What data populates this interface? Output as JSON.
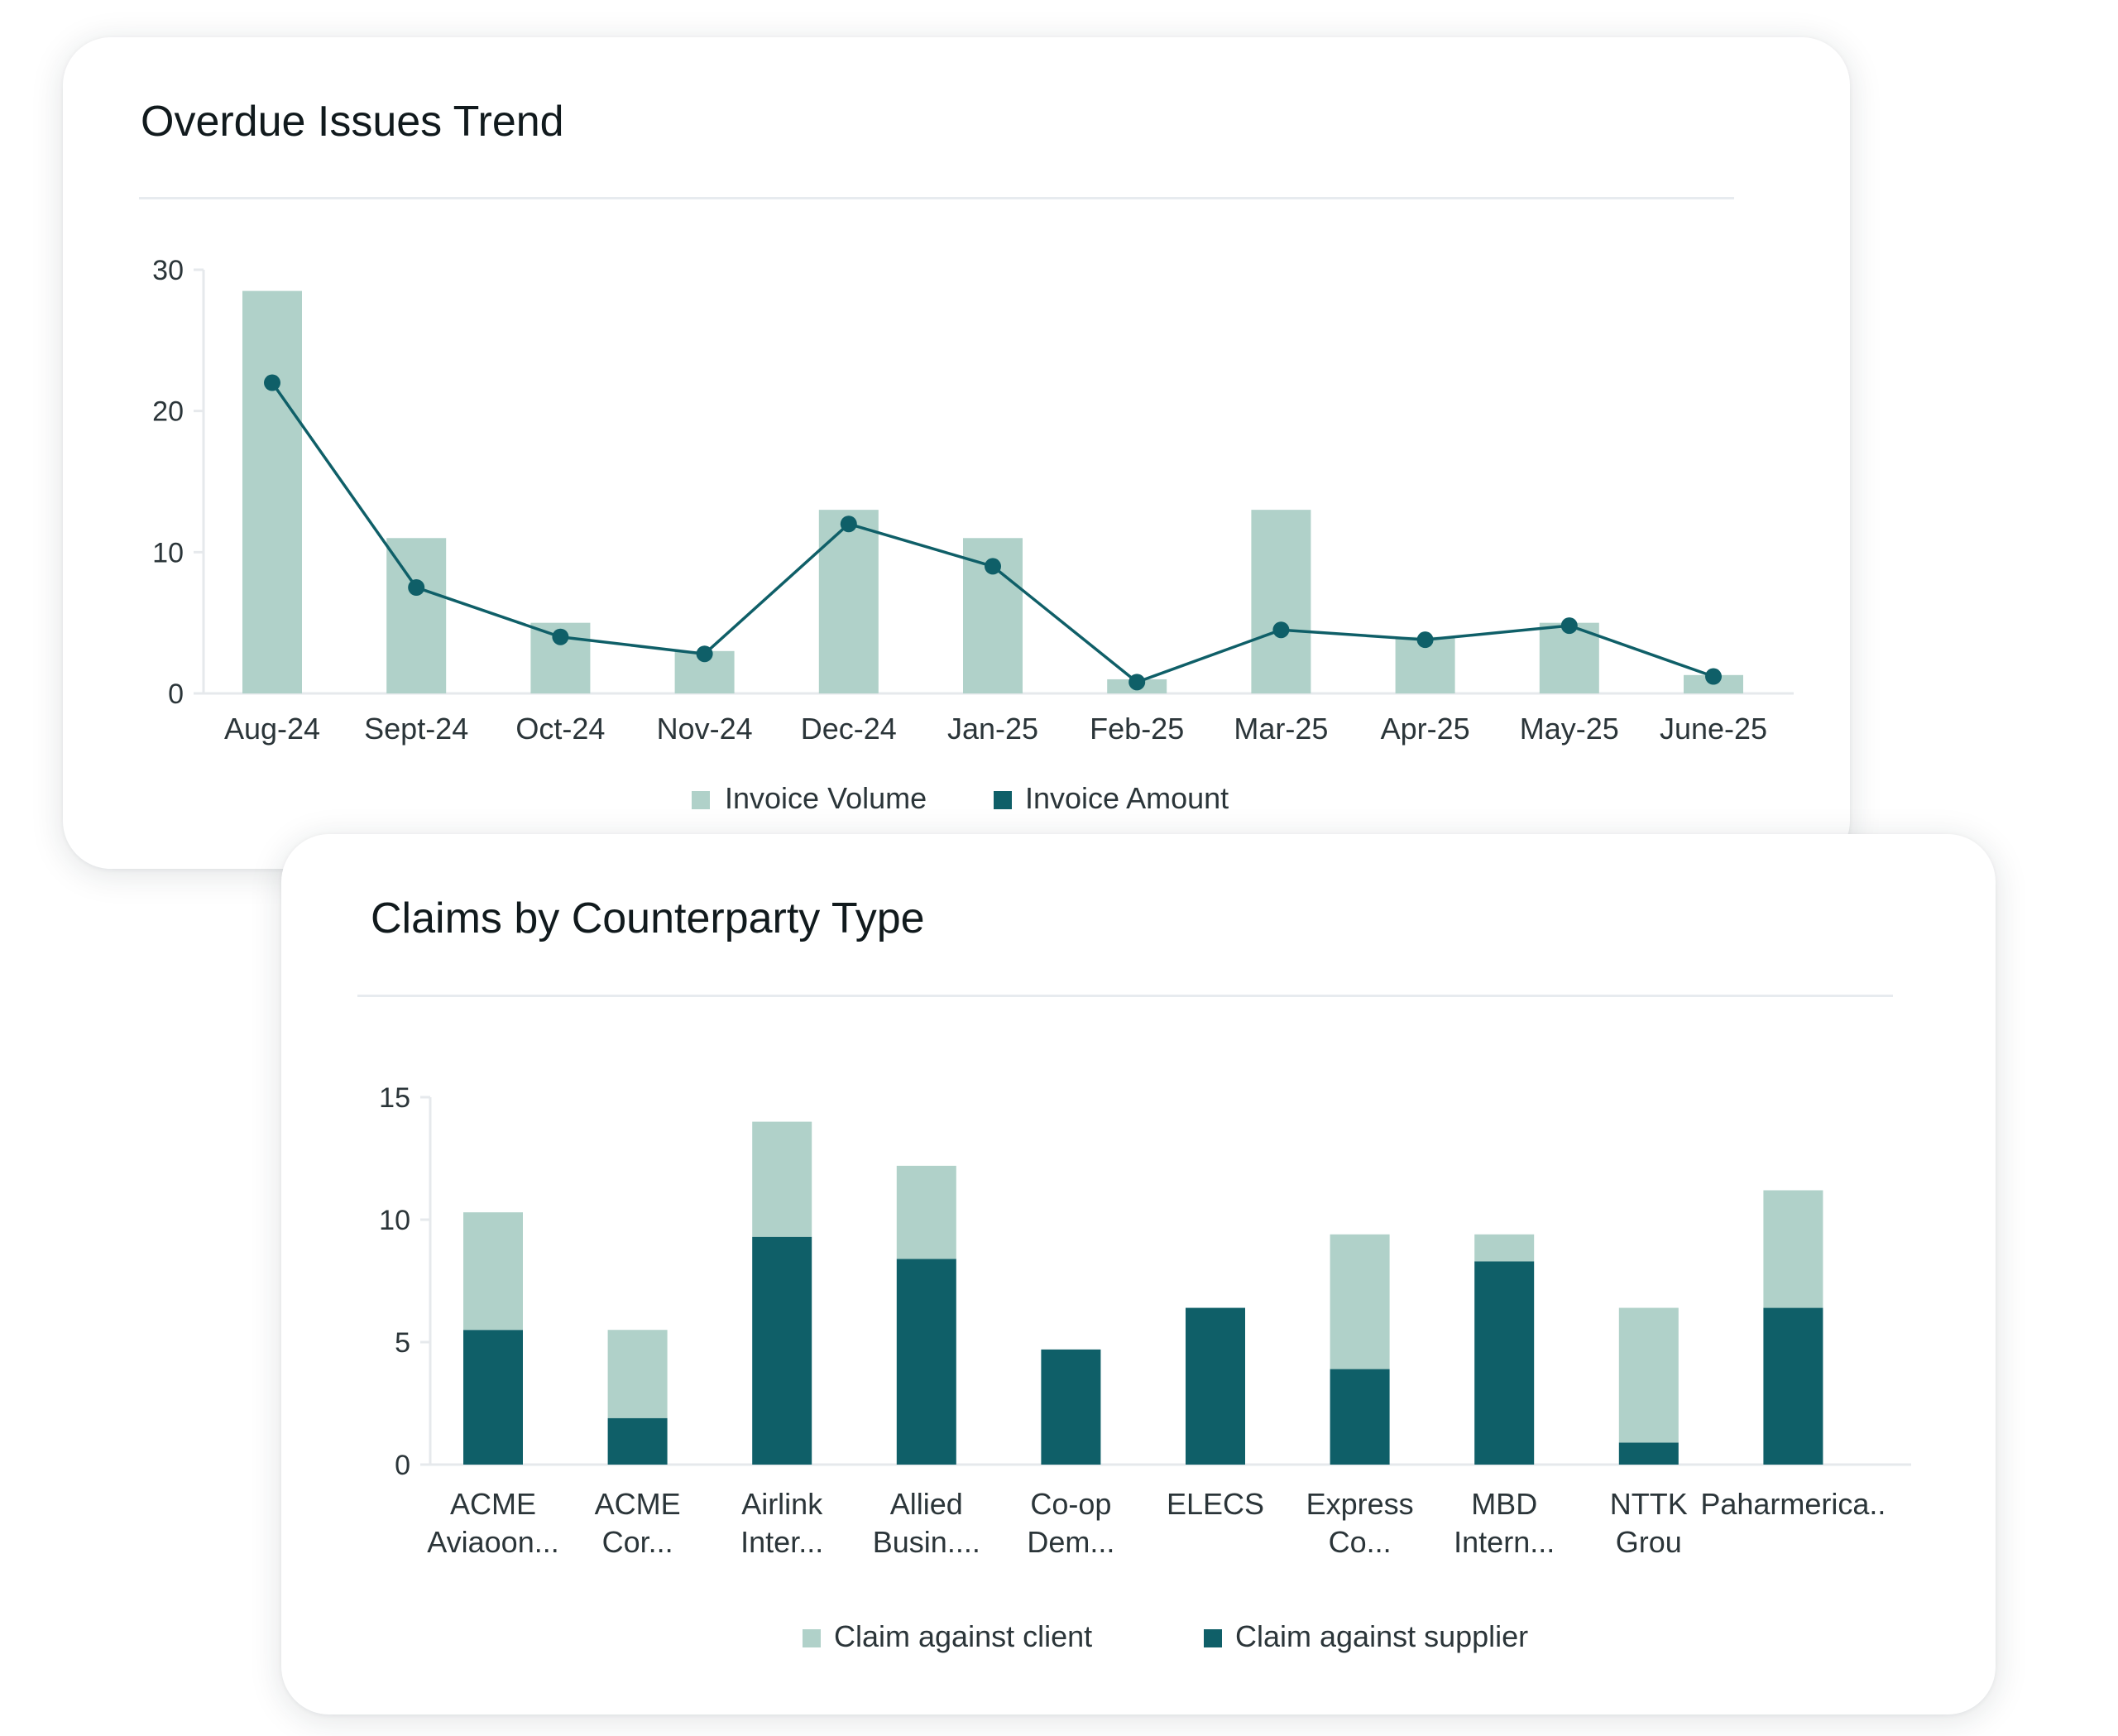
{
  "charts": {
    "trend": {
      "title": "Overdue Issues Trend"
    },
    "claims": {
      "title": "Claims by Counterparty Type"
    }
  },
  "colors": {
    "light": "#b0d1c9",
    "dark": "#0f5f68",
    "axis": "#e6e9ec",
    "text": "#2b3539"
  },
  "chart_data": [
    {
      "type": "bar",
      "title": "Overdue Issues Trend",
      "categories": [
        "Aug-24",
        "Sept-24",
        "Oct-24",
        "Nov-24",
        "Dec-24",
        "Jan-25",
        "Feb-25",
        "Mar-25",
        "Apr-25",
        "May-25",
        "June-25"
      ],
      "series": [
        {
          "name": "Invoice Volume",
          "type": "bar",
          "values": [
            28.5,
            11,
            5,
            3,
            13,
            11,
            1,
            13,
            4,
            5,
            1.3
          ]
        },
        {
          "name": "Invoice Amount",
          "type": "line",
          "values": [
            22,
            7.5,
            4,
            2.8,
            12,
            9,
            0.8,
            4.5,
            3.8,
            4.8,
            1.2
          ]
        }
      ],
      "ylim": [
        0,
        30
      ],
      "yticks": [
        0,
        10,
        20,
        30
      ],
      "xlabel": "",
      "ylabel": "",
      "legend": "bottom-center"
    },
    {
      "type": "bar",
      "title": "Claims by Counterparty Type",
      "stacked": true,
      "categories": [
        [
          "ACME",
          "Aviaoon..."
        ],
        [
          "ACME",
          "Cor..."
        ],
        [
          "Airlink",
          "Inter..."
        ],
        [
          "Allied",
          "Busin...."
        ],
        [
          "Co-op",
          "Dem..."
        ],
        [
          "ELECS"
        ],
        [
          "Express",
          "Co..."
        ],
        [
          "MBD",
          "Intern..."
        ],
        [
          "NTTK",
          "Grou"
        ],
        [
          "Paharmerica.."
        ]
      ],
      "series": [
        {
          "name": "Claim against supplier",
          "values": [
            5.5,
            1.9,
            9.3,
            8.4,
            4.7,
            6.4,
            3.9,
            8.3,
            0.9,
            6.4
          ]
        },
        {
          "name": "Claim against client",
          "values": [
            4.8,
            3.6,
            4.7,
            3.8,
            0,
            0,
            5.5,
            1.1,
            5.5,
            4.8
          ]
        }
      ],
      "ylim": [
        0,
        15
      ],
      "yticks": [
        0,
        5,
        10,
        15
      ],
      "xlabel": "",
      "ylabel": "",
      "legend": "bottom-center"
    }
  ]
}
